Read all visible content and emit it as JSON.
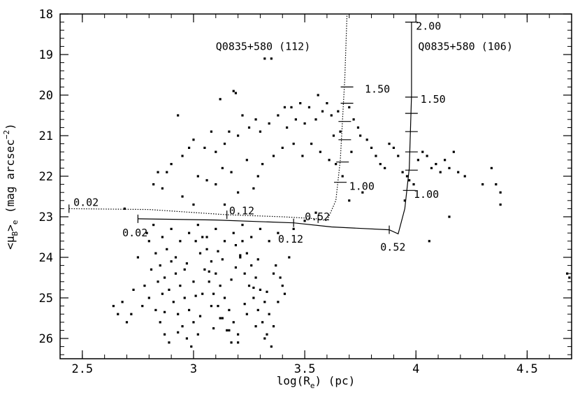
{
  "chart_data": {
    "type": "scatter",
    "xlabel": "log(Rₑ) (pc)",
    "ylabel": "<μʙ>ₑ (mag arcsec⁻²)",
    "ylabel_parts": {
      "open": "<μ",
      "sub": "B",
      "close": ">",
      "sub2": "e",
      "units": " (mag arcsec",
      "sup": "−2",
      "end": ")"
    },
    "xlabel_parts": {
      "pre": "log(R",
      "sub": "e",
      "post": ") (pc)"
    },
    "xlim": [
      2.4,
      4.7
    ],
    "ylim": [
      26.5,
      18
    ],
    "y_inverted": true,
    "x_ticks": [
      2.5,
      3,
      3.5,
      4,
      4.5
    ],
    "x_tick_labels": [
      "2.5",
      "3",
      "3.5",
      "4",
      "4.5"
    ],
    "y_ticks": [
      18,
      19,
      20,
      21,
      22,
      23,
      24,
      25,
      26
    ],
    "y_tick_labels": [
      "18",
      "19",
      "20",
      "21",
      "22",
      "23",
      "24",
      "25",
      "26"
    ],
    "grid": false,
    "series": [
      {
        "name": "",
        "kind": "points",
        "points": [
          [
            3.32,
            19.1
          ],
          [
            3.35,
            19.1
          ],
          [
            3.18,
            19.9
          ],
          [
            3.19,
            19.95
          ],
          [
            3.12,
            20.1
          ],
          [
            3.41,
            20.3
          ],
          [
            3.44,
            20.3
          ],
          [
            3.48,
            20.2
          ],
          [
            3.52,
            20.3
          ],
          [
            3.56,
            20.0
          ],
          [
            3.58,
            20.4
          ],
          [
            3.6,
            20.2
          ],
          [
            3.62,
            20.5
          ],
          [
            3.65,
            20.4
          ],
          [
            3.7,
            20.3
          ],
          [
            3.72,
            20.6
          ],
          [
            3.74,
            20.8
          ],
          [
            3.66,
            20.9
          ],
          [
            3.63,
            21.0
          ],
          [
            3.55,
            20.6
          ],
          [
            3.5,
            20.7
          ],
          [
            3.46,
            20.6
          ],
          [
            3.42,
            20.8
          ],
          [
            3.38,
            20.5
          ],
          [
            3.34,
            20.7
          ],
          [
            3.3,
            20.9
          ],
          [
            3.28,
            20.6
          ],
          [
            3.25,
            20.8
          ],
          [
            3.22,
            20.5
          ],
          [
            3.2,
            21.0
          ],
          [
            3.16,
            20.9
          ],
          [
            3.14,
            21.2
          ],
          [
            3.1,
            21.4
          ],
          [
            3.08,
            20.9
          ],
          [
            3.05,
            21.3
          ],
          [
            3.0,
            21.1
          ],
          [
            2.98,
            21.3
          ],
          [
            2.95,
            21.5
          ],
          [
            2.93,
            20.5
          ],
          [
            2.9,
            21.7
          ],
          [
            2.88,
            21.9
          ],
          [
            2.86,
            22.3
          ],
          [
            2.84,
            21.9
          ],
          [
            2.82,
            22.2
          ],
          [
            2.95,
            22.5
          ],
          [
            3.0,
            22.7
          ],
          [
            3.02,
            22.0
          ],
          [
            3.06,
            22.1
          ],
          [
            3.1,
            22.2
          ],
          [
            3.13,
            21.8
          ],
          [
            3.17,
            21.9
          ],
          [
            3.24,
            21.6
          ],
          [
            3.27,
            22.3
          ],
          [
            3.29,
            22.0
          ],
          [
            3.31,
            21.7
          ],
          [
            3.36,
            21.5
          ],
          [
            3.4,
            21.3
          ],
          [
            3.45,
            21.2
          ],
          [
            3.49,
            21.5
          ],
          [
            3.53,
            21.2
          ],
          [
            3.57,
            21.4
          ],
          [
            3.61,
            21.6
          ],
          [
            3.64,
            21.7
          ],
          [
            3.67,
            22.0
          ],
          [
            3.71,
            21.4
          ],
          [
            3.75,
            21.0
          ],
          [
            3.78,
            21.1
          ],
          [
            3.8,
            21.3
          ],
          [
            3.82,
            21.5
          ],
          [
            3.84,
            21.7
          ],
          [
            3.86,
            21.8
          ],
          [
            3.88,
            21.2
          ],
          [
            3.9,
            21.3
          ],
          [
            3.92,
            21.5
          ],
          [
            3.94,
            21.9
          ],
          [
            3.96,
            22.0
          ],
          [
            3.97,
            22.1
          ],
          [
            3.99,
            22.2
          ],
          [
            4.01,
            21.6
          ],
          [
            4.03,
            21.4
          ],
          [
            4.05,
            21.5
          ],
          [
            4.07,
            21.8
          ],
          [
            4.09,
            21.7
          ],
          [
            4.11,
            21.9
          ],
          [
            4.13,
            21.6
          ],
          [
            4.15,
            21.8
          ],
          [
            4.17,
            21.4
          ],
          [
            4.19,
            21.9
          ],
          [
            4.22,
            22.0
          ],
          [
            4.3,
            22.2
          ],
          [
            4.34,
            21.8
          ],
          [
            4.36,
            22.2
          ],
          [
            4.38,
            22.4
          ],
          [
            4.38,
            22.7
          ],
          [
            4.15,
            23.0
          ],
          [
            4.06,
            23.6
          ],
          [
            3.95,
            22.6
          ],
          [
            3.76,
            22.4
          ],
          [
            3.7,
            22.6
          ],
          [
            3.55,
            22.9
          ],
          [
            3.5,
            23.1
          ],
          [
            3.45,
            23.3
          ],
          [
            3.2,
            22.4
          ],
          [
            3.14,
            22.7
          ],
          [
            2.75,
            24.0
          ],
          [
            2.73,
            24.8
          ],
          [
            2.77,
            25.2
          ],
          [
            2.68,
            25.1
          ],
          [
            2.66,
            25.4
          ],
          [
            2.7,
            25.6
          ],
          [
            2.64,
            25.2
          ],
          [
            2.72,
            25.4
          ],
          [
            2.8,
            23.6
          ],
          [
            2.83,
            23.9
          ],
          [
            2.85,
            24.2
          ],
          [
            2.87,
            24.5
          ],
          [
            2.89,
            24.8
          ],
          [
            2.91,
            25.1
          ],
          [
            2.93,
            25.4
          ],
          [
            2.95,
            25.7
          ],
          [
            2.97,
            26.0
          ],
          [
            2.99,
            26.2
          ],
          [
            3.01,
            23.6
          ],
          [
            3.03,
            23.9
          ],
          [
            3.05,
            24.3
          ],
          [
            3.07,
            24.6
          ],
          [
            3.09,
            24.9
          ],
          [
            3.11,
            25.2
          ],
          [
            3.13,
            25.5
          ],
          [
            3.15,
            25.8
          ],
          [
            3.17,
            26.1
          ],
          [
            3.19,
            23.7
          ],
          [
            3.21,
            24.0
          ],
          [
            3.23,
            24.4
          ],
          [
            3.25,
            24.7
          ],
          [
            3.27,
            25.0
          ],
          [
            3.29,
            25.3
          ],
          [
            3.31,
            25.6
          ],
          [
            3.33,
            25.9
          ],
          [
            3.35,
            26.2
          ],
          [
            3.37,
            24.2
          ],
          [
            3.39,
            24.5
          ],
          [
            3.41,
            24.9
          ],
          [
            3.43,
            24.0
          ],
          [
            2.81,
            24.3
          ],
          [
            2.84,
            24.6
          ],
          [
            2.86,
            24.9
          ],
          [
            2.88,
            23.8
          ],
          [
            2.9,
            24.1
          ],
          [
            2.92,
            24.4
          ],
          [
            2.94,
            24.7
          ],
          [
            2.96,
            25.0
          ],
          [
            2.98,
            25.3
          ],
          [
            3.0,
            25.6
          ],
          [
            3.02,
            25.9
          ],
          [
            3.04,
            23.5
          ],
          [
            3.06,
            23.8
          ],
          [
            3.08,
            24.1
          ],
          [
            3.1,
            24.4
          ],
          [
            3.12,
            24.7
          ],
          [
            3.14,
            25.0
          ],
          [
            3.16,
            25.3
          ],
          [
            3.18,
            25.6
          ],
          [
            3.2,
            25.9
          ],
          [
            3.22,
            23.6
          ],
          [
            3.24,
            23.9
          ],
          [
            3.26,
            24.2
          ],
          [
            3.28,
            24.5
          ],
          [
            3.3,
            24.8
          ],
          [
            3.32,
            25.1
          ],
          [
            3.34,
            25.4
          ],
          [
            3.36,
            25.7
          ],
          [
            2.79,
            23.4
          ],
          [
            2.82,
            23.2
          ],
          [
            2.86,
            23.5
          ],
          [
            2.9,
            23.3
          ],
          [
            2.94,
            23.6
          ],
          [
            2.98,
            23.4
          ],
          [
            3.02,
            23.2
          ],
          [
            3.06,
            23.5
          ],
          [
            3.1,
            23.3
          ],
          [
            3.14,
            23.6
          ],
          [
            3.18,
            23.4
          ],
          [
            3.22,
            23.2
          ],
          [
            3.26,
            23.5
          ],
          [
            3.3,
            23.3
          ],
          [
            3.34,
            23.6
          ],
          [
            3.38,
            23.4
          ],
          [
            2.78,
            24.7
          ],
          [
            2.8,
            25.0
          ],
          [
            2.83,
            25.3
          ],
          [
            2.85,
            25.6
          ],
          [
            2.87,
            25.9
          ],
          [
            2.89,
            26.1
          ],
          [
            2.92,
            24.0
          ],
          [
            2.96,
            24.3
          ],
          [
            3.0,
            24.6
          ],
          [
            3.04,
            24.9
          ],
          [
            3.08,
            25.2
          ],
          [
            3.12,
            25.5
          ],
          [
            3.16,
            25.8
          ],
          [
            3.2,
            26.1
          ],
          [
            3.24,
            25.4
          ],
          [
            3.28,
            25.7
          ],
          [
            3.32,
            26.0
          ],
          [
            3.36,
            24.4
          ],
          [
            3.4,
            24.7
          ],
          [
            3.38,
            25.1
          ],
          [
            2.97,
            24.15
          ],
          [
            3.07,
            24.35
          ],
          [
            3.17,
            24.55
          ],
          [
            3.27,
            24.75
          ],
          [
            2.87,
            25.35
          ],
          [
            3.03,
            25.45
          ],
          [
            3.13,
            24.05
          ],
          [
            3.23,
            25.15
          ],
          [
            3.33,
            24.85
          ],
          [
            2.93,
            25.85
          ],
          [
            3.09,
            25.75
          ],
          [
            3.19,
            24.25
          ],
          [
            3.29,
            24.05
          ],
          [
            3.01,
            24.95
          ],
          [
            3.11,
            23.85
          ],
          [
            3.21,
            23.95
          ],
          [
            4.68,
            24.4
          ],
          [
            4.69,
            24.5
          ],
          [
            2.69,
            22.8
          ]
        ]
      },
      {
        "name": "",
        "kind": "line",
        "style": "dotted",
        "points": [
          [
            2.44,
            22.8
          ],
          [
            2.8,
            22.82
          ],
          [
            3.15,
            22.95
          ],
          [
            3.4,
            23.0
          ],
          [
            3.56,
            23.05
          ],
          [
            3.6,
            23.1
          ],
          [
            3.64,
            22.6
          ],
          [
            3.66,
            21.6
          ],
          [
            3.68,
            19.6
          ],
          [
            3.69,
            18.0
          ]
        ]
      },
      {
        "name": "",
        "kind": "line",
        "style": "solid",
        "points": [
          [
            2.75,
            23.05
          ],
          [
            3.1,
            23.08
          ],
          [
            3.45,
            23.15
          ],
          [
            3.62,
            23.25
          ],
          [
            3.88,
            23.32
          ],
          [
            3.92,
            23.42
          ],
          [
            3.95,
            22.8
          ],
          [
            3.97,
            21.8
          ],
          [
            3.98,
            20.0
          ],
          [
            3.98,
            18.2
          ]
        ]
      }
    ],
    "annotations": [
      {
        "text": "Q0835+580 (112)",
        "at": [
          3.1,
          18.8
        ]
      },
      {
        "text": "Q0835+580 (106)",
        "at": [
          4.01,
          18.8
        ]
      },
      {
        "text": "0.02",
        "at": [
          2.46,
          22.65
        ]
      },
      {
        "text": "0.02",
        "at": [
          2.68,
          23.4
        ]
      },
      {
        "text": "0.12",
        "at": [
          3.16,
          22.85
        ]
      },
      {
        "text": "0.12",
        "at": [
          3.38,
          23.55
        ]
      },
      {
        "text": "0.52",
        "at": [
          3.5,
          23.0
        ]
      },
      {
        "text": "0.52",
        "at": [
          3.84,
          23.75
        ]
      },
      {
        "text": "1.50",
        "at": [
          3.77,
          19.85
        ]
      },
      {
        "text": "1.00",
        "at": [
          3.7,
          22.25
        ]
      },
      {
        "text": "2.00",
        "at": [
          4.0,
          18.3
        ]
      },
      {
        "text": "1.50",
        "at": [
          4.02,
          20.1
        ]
      },
      {
        "text": "1.00",
        "at": [
          3.99,
          22.45
        ]
      }
    ],
    "markers": [
      {
        "type": "vtick",
        "at": [
          2.44,
          22.8
        ]
      },
      {
        "type": "vtick",
        "at": [
          2.75,
          23.05
        ]
      },
      {
        "type": "vtick",
        "at": [
          3.15,
          22.95
        ]
      },
      {
        "type": "vtick",
        "at": [
          3.45,
          23.15
        ]
      },
      {
        "type": "vtick",
        "at": [
          3.56,
          23.05
        ]
      },
      {
        "type": "vtick",
        "at": [
          3.88,
          23.32
        ]
      },
      {
        "type": "htick",
        "at": [
          3.69,
          19.8
        ]
      },
      {
        "type": "htick",
        "at": [
          3.69,
          20.2
        ]
      },
      {
        "type": "htick",
        "at": [
          3.68,
          20.65
        ]
      },
      {
        "type": "htick",
        "at": [
          3.68,
          21.1
        ]
      },
      {
        "type": "htick",
        "at": [
          3.67,
          21.65
        ]
      },
      {
        "type": "htick",
        "at": [
          3.66,
          22.15
        ]
      },
      {
        "type": "htick",
        "at": [
          3.98,
          18.2
        ]
      },
      {
        "type": "htick",
        "at": [
          3.98,
          20.05
        ]
      },
      {
        "type": "htick",
        "at": [
          3.98,
          20.45
        ]
      },
      {
        "type": "htick",
        "at": [
          3.98,
          20.9
        ]
      },
      {
        "type": "htick",
        "at": [
          3.98,
          21.4
        ]
      },
      {
        "type": "htick",
        "at": [
          3.98,
          21.85
        ]
      },
      {
        "type": "htick",
        "at": [
          3.97,
          22.35
        ]
      }
    ]
  }
}
